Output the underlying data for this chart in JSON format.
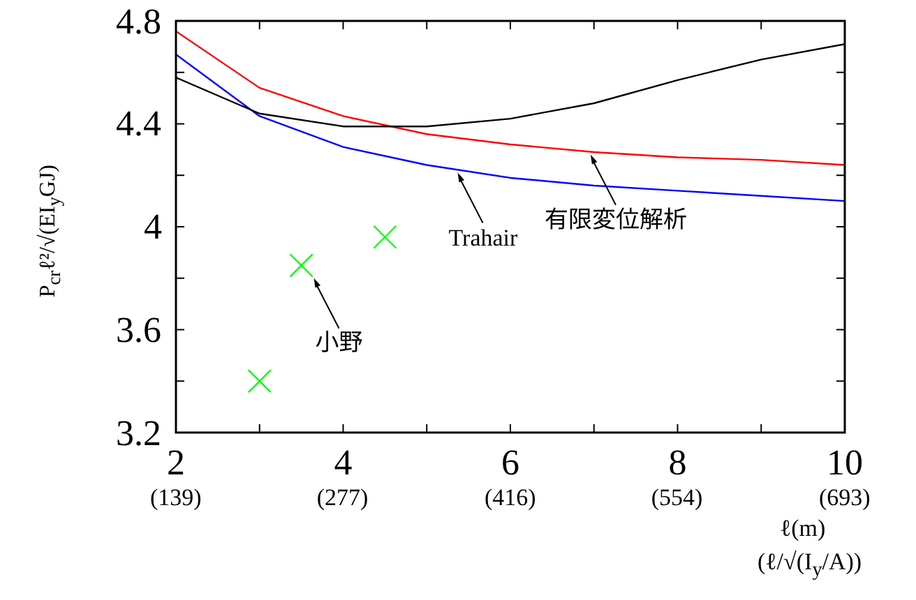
{
  "chart_data": {
    "type": "line",
    "xlabel": "ℓ(m)",
    "x2label": "(ℓ/√(I$_{y}$/A))",
    "x2lim": [
      139,
      693
    ],
    "x2ticks": [
      {
        "value": 139,
        "label": "(139)"
      },
      {
        "value": 277,
        "label": "(277)"
      },
      {
        "value": 416,
        "label": "(416)"
      },
      {
        "value": 554,
        "label": "(554)"
      },
      {
        "value": 693,
        "label": "(693)"
      }
    ],
    "ylabel": "P$_{cr}$ℓ²/√(EI$_{y}$GJ)",
    "xlim": [
      2,
      10
    ],
    "xticks": [
      2,
      {
        "value": 3,
        "label": null
      },
      4,
      {
        "value": 5,
        "label": null
      },
      6,
      {
        "value": 7,
        "label": null
      },
      8,
      {
        "value": 9,
        "label": null
      },
      10
    ],
    "ylim": [
      3.2,
      4.8
    ],
    "yticks": [
      3.2,
      {
        "value": 3.4,
        "label": null
      },
      3.6,
      {
        "value": 3.8,
        "label": null
      },
      4,
      {
        "value": 4.2,
        "label": null
      },
      4.4,
      {
        "value": 4.6,
        "label": null
      },
      4.8
    ],
    "grid": false,
    "series": [
      {
        "color": "#ff0000",
        "x": [
          2,
          3,
          4,
          5,
          6,
          7,
          8,
          9,
          10
        ],
        "values": [
          4.76,
          4.54,
          4.43,
          4.36,
          4.32,
          4.29,
          4.27,
          4.26,
          4.24
        ]
      },
      {
        "color": "#0000ff",
        "x": [
          2,
          3,
          4,
          5,
          6,
          7,
          8,
          9,
          10
        ],
        "values": [
          4.67,
          4.43,
          4.31,
          4.24,
          4.19,
          4.16,
          4.14,
          4.12,
          4.1
        ]
      },
      {
        "color": "#000000",
        "x": [
          2,
          3,
          4,
          5,
          6,
          7,
          8,
          9,
          10
        ],
        "values": [
          4.58,
          4.44,
          4.39,
          4.39,
          4.42,
          4.48,
          4.57,
          4.65,
          4.71
        ]
      },
      {
        "type": "scatter",
        "marker": "cross",
        "color": "#00ff00",
        "x": [
          3,
          3.5,
          4.5
        ],
        "values": [
          3.4,
          3.85,
          3.96
        ]
      }
    ],
    "annotations": [
      {
        "text": "Trahair",
        "x": 5.37,
        "y": 4.21
      },
      {
        "text": "有限変位解析",
        "x": 6.96,
        "y": 4.28
      },
      {
        "text": "小野",
        "x": 3.65,
        "y": 3.8
      }
    ]
  }
}
